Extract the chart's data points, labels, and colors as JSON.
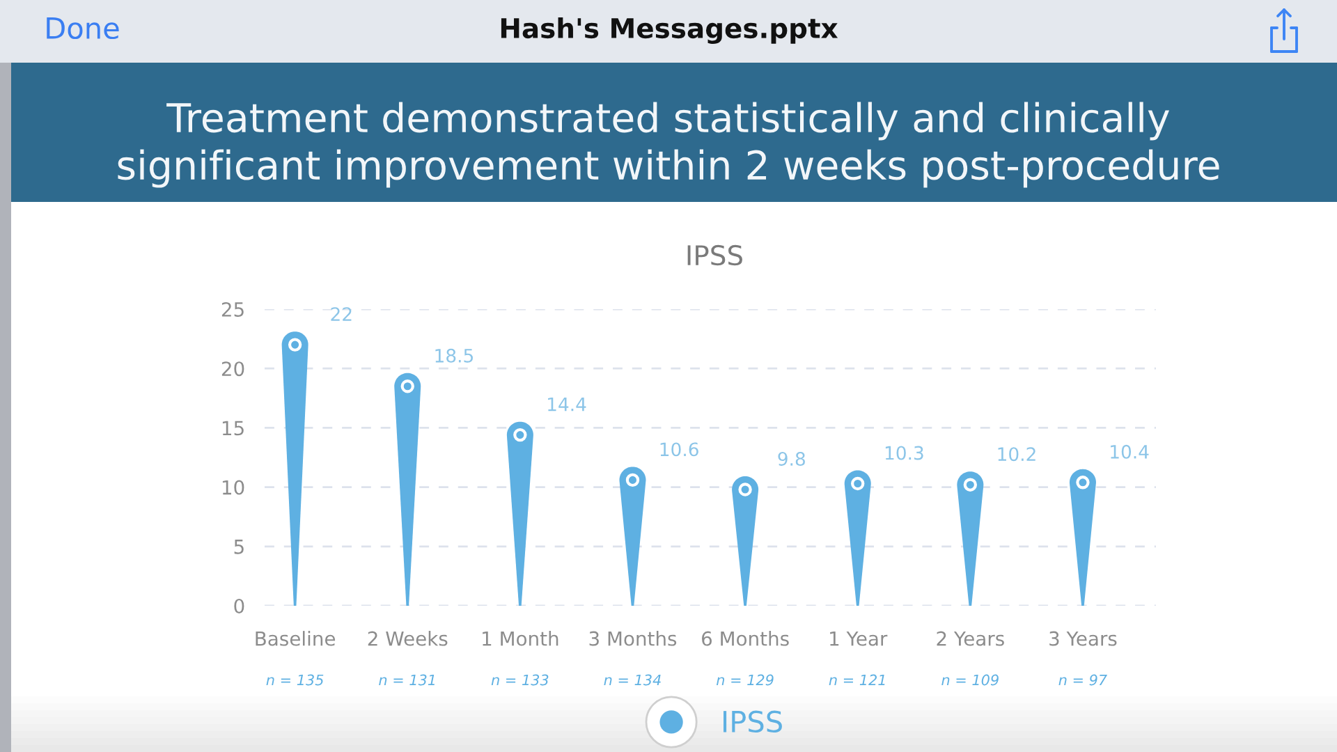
{
  "chart_data": {
    "type": "lollipop",
    "title": "Treatment demonstrated statistically and clinically significant improvement within 2 weeks post-procedure",
    "subtitle": "IPSS",
    "categories": [
      "Baseline",
      "2 Weeks",
      "1 Month",
      "3 Months",
      "6 Months",
      "1 Year",
      "2 Years",
      "3 Years"
    ],
    "series": [
      {
        "name": "IPSS",
        "color": "#5eb0e2",
        "values": [
          22,
          18.5,
          14.4,
          10.6,
          9.8,
          10.3,
          10.2,
          10.4
        ]
      }
    ],
    "ylim": [
      0,
      25
    ],
    "yticks": [
      0,
      5,
      10,
      15,
      20,
      25
    ],
    "grid": "y",
    "legend": "bottom",
    "marker": "circle",
    "data_labels": true,
    "annotations": [
      "Done",
      "Hash's Messages.pptx",
      "n = 135",
      "n = 131",
      "n = 133",
      "n = 134",
      "n = 129",
      "n = 121",
      "n = 109",
      "n = 97"
    ]
  }
}
